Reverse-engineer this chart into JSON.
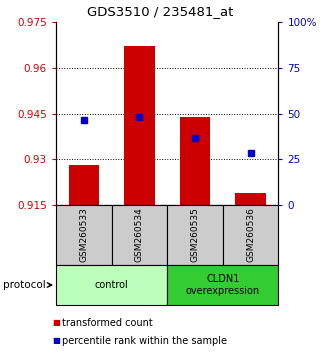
{
  "title": "GDS3510 / 235481_at",
  "samples": [
    "GSM260533",
    "GSM260534",
    "GSM260535",
    "GSM260536"
  ],
  "bar_bottoms": [
    0.915,
    0.915,
    0.915,
    0.915
  ],
  "bar_tops": [
    0.928,
    0.967,
    0.944,
    0.919
  ],
  "percentile_values": [
    0.943,
    0.944,
    0.937,
    0.932
  ],
  "ylim_left": [
    0.915,
    0.975
  ],
  "ylim_right": [
    0,
    100
  ],
  "yticks_left": [
    0.915,
    0.93,
    0.945,
    0.96,
    0.975
  ],
  "yticks_right": [
    0,
    25,
    50,
    75,
    100
  ],
  "ytick_labels_left": [
    "0.915",
    "0.93",
    "0.945",
    "0.96",
    "0.975"
  ],
  "ytick_labels_right": [
    "0",
    "25",
    "50",
    "75",
    "100%"
  ],
  "bar_color": "#cc0000",
  "dot_color": "#0000cc",
  "bg_color": "#ffffff",
  "plot_bg": "#ffffff",
  "groups": [
    {
      "label": "control",
      "samples": [
        0,
        1
      ],
      "color": "#bbffbb"
    },
    {
      "label": "CLDN1\noverexpression",
      "samples": [
        2,
        3
      ],
      "color": "#33cc33"
    }
  ],
  "protocol_label": "protocol",
  "legend_bar_label": "transformed count",
  "legend_dot_label": "percentile rank within the sample",
  "left_axis_color": "#cc0000",
  "right_axis_color": "#0000cc",
  "sample_box_color": "#cccccc",
  "sample_box_border": "#000000"
}
